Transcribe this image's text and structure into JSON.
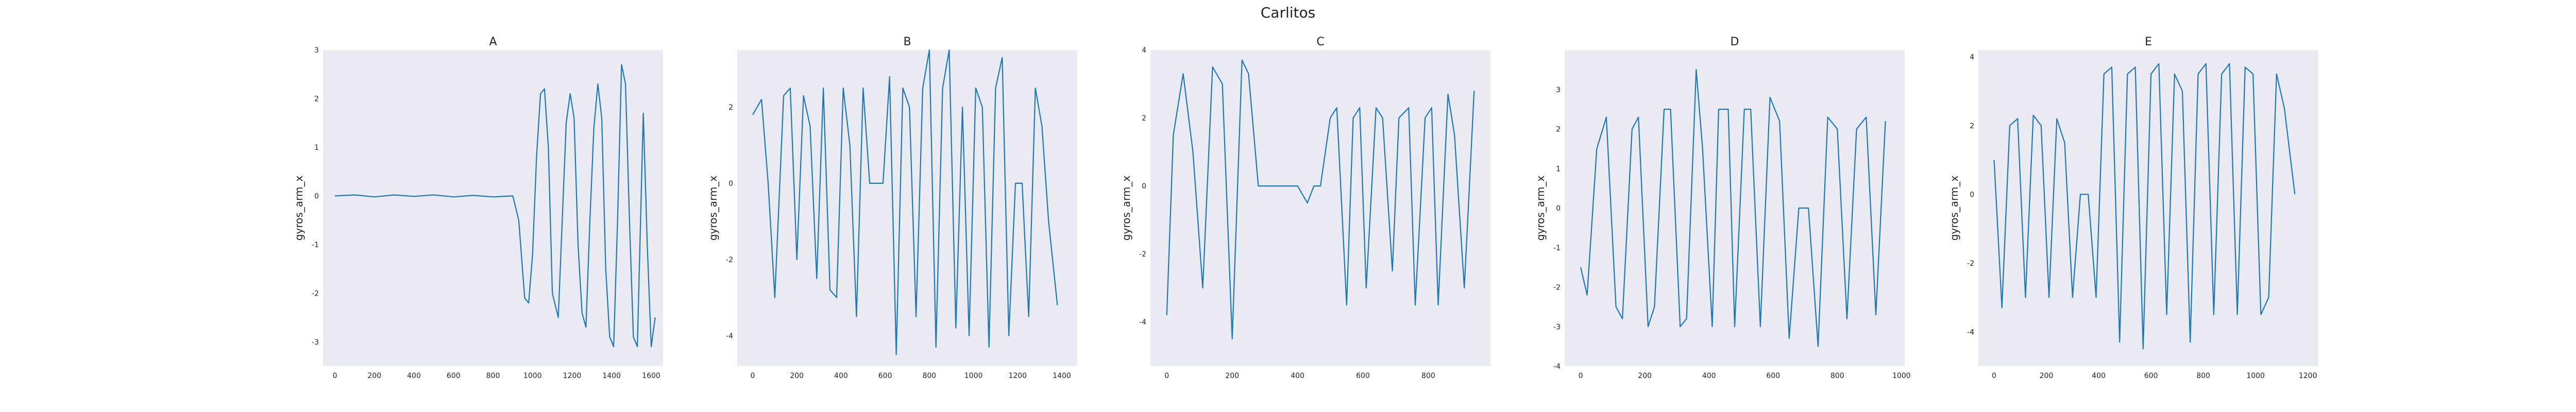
{
  "figure": {
    "title": "Carlitos"
  },
  "colors": {
    "line": "#1f77b4",
    "panel_bg": "#eaeaf2",
    "text": "#222222"
  },
  "chart_data": [
    {
      "type": "line",
      "title": "A",
      "xlabel": "",
      "ylabel": "gyros_arm_x",
      "xlim": [
        -60,
        1660
      ],
      "ylim": [
        -3.5,
        3.0
      ],
      "xticks": [
        0,
        200,
        400,
        600,
        800,
        1000,
        1200,
        1400,
        1600
      ],
      "yticks": [
        -3,
        -2,
        -1,
        0,
        1,
        2,
        3
      ],
      "grid": false,
      "x": [
        0,
        100,
        200,
        300,
        400,
        500,
        600,
        700,
        800,
        900,
        930,
        960,
        980,
        1000,
        1020,
        1040,
        1060,
        1080,
        1100,
        1130,
        1150,
        1170,
        1190,
        1210,
        1230,
        1250,
        1270,
        1290,
        1310,
        1330,
        1350,
        1370,
        1390,
        1410,
        1430,
        1450,
        1470,
        1490,
        1510,
        1530,
        1560,
        1580,
        1600,
        1620
      ],
      "y": [
        0.0,
        0.02,
        -0.02,
        0.02,
        -0.01,
        0.02,
        -0.02,
        0.01,
        -0.02,
        0.0,
        -0.5,
        -2.1,
        -2.2,
        -1.2,
        0.8,
        2.1,
        2.2,
        1.0,
        -2.0,
        -2.5,
        -0.5,
        1.5,
        2.1,
        1.6,
        -1.0,
        -2.4,
        -2.7,
        -0.5,
        1.4,
        2.3,
        1.6,
        -1.5,
        -2.9,
        -3.1,
        -0.5,
        2.7,
        2.3,
        -0.5,
        -2.9,
        -3.1,
        1.7,
        -1.0,
        -3.1,
        -2.5
      ]
    },
    {
      "type": "line",
      "title": "B",
      "xlabel": "",
      "ylabel": "gyros_arm_x",
      "xlim": [
        -70,
        1470
      ],
      "ylim": [
        -4.8,
        3.5
      ],
      "xticks": [
        0,
        200,
        400,
        600,
        800,
        1000,
        1200,
        1400
      ],
      "yticks": [
        -4,
        -2,
        0,
        2
      ],
      "grid": false,
      "x": [
        0,
        40,
        70,
        100,
        140,
        170,
        200,
        230,
        260,
        290,
        320,
        350,
        380,
        410,
        440,
        470,
        500,
        530,
        560,
        590,
        620,
        650,
        680,
        710,
        740,
        770,
        800,
        830,
        860,
        890,
        920,
        950,
        980,
        1010,
        1040,
        1070,
        1100,
        1130,
        1160,
        1190,
        1220,
        1250,
        1280,
        1310,
        1340,
        1380
      ],
      "y": [
        1.8,
        2.2,
        0.0,
        -3.0,
        2.3,
        2.5,
        -2.0,
        2.3,
        1.5,
        -2.5,
        2.5,
        -2.8,
        -3.0,
        2.5,
        1.0,
        -3.5,
        2.5,
        0.0,
        0.0,
        0.0,
        2.8,
        -4.5,
        2.5,
        2.0,
        -3.5,
        2.5,
        3.5,
        -4.3,
        2.5,
        3.5,
        -3.8,
        2.0,
        -4.0,
        2.5,
        2.0,
        -4.3,
        2.5,
        3.3,
        -4.0,
        0.0,
        0.0,
        -3.5,
        2.5,
        1.5,
        -1.0,
        -3.2
      ]
    },
    {
      "type": "line",
      "title": "C",
      "xlabel": "",
      "ylabel": "gyros_arm_x",
      "xlim": [
        -50,
        990
      ],
      "ylim": [
        -5.3,
        4.0
      ],
      "xticks": [
        0,
        200,
        400,
        600,
        800
      ],
      "yticks": [
        -4,
        -2,
        0,
        2,
        4
      ],
      "grid": false,
      "x": [
        0,
        20,
        50,
        80,
        110,
        140,
        170,
        200,
        230,
        250,
        280,
        300,
        350,
        400,
        430,
        450,
        470,
        500,
        520,
        550,
        570,
        590,
        610,
        640,
        660,
        690,
        710,
        740,
        760,
        790,
        810,
        830,
        860,
        880,
        910,
        940
      ],
      "y": [
        -3.8,
        1.5,
        3.3,
        1.0,
        -3.0,
        3.5,
        3.0,
        -4.5,
        3.7,
        3.3,
        0.0,
        0.0,
        0.0,
        0.0,
        -0.5,
        0.0,
        0.0,
        2.0,
        2.3,
        -3.5,
        2.0,
        2.3,
        -3.0,
        2.3,
        2.0,
        -2.5,
        2.0,
        2.3,
        -3.5,
        2.0,
        2.3,
        -3.5,
        2.7,
        1.5,
        -3.0,
        2.8
      ]
    },
    {
      "type": "line",
      "title": "D",
      "xlabel": "",
      "ylabel": "gyros_arm_x",
      "xlim": [
        -50,
        1010
      ],
      "ylim": [
        -4.0,
        4.0
      ],
      "xticks": [
        0,
        200,
        400,
        600,
        800,
        1000
      ],
      "yticks": [
        -4,
        -3,
        -2,
        -1,
        0,
        1,
        2,
        3
      ],
      "grid": false,
      "x": [
        0,
        20,
        50,
        80,
        110,
        130,
        160,
        180,
        210,
        230,
        260,
        280,
        310,
        330,
        360,
        380,
        410,
        430,
        460,
        480,
        510,
        530,
        560,
        590,
        620,
        650,
        680,
        710,
        740,
        770,
        800,
        830,
        860,
        890,
        920,
        950
      ],
      "y": [
        -1.5,
        -2.2,
        1.5,
        2.3,
        -2.5,
        -2.8,
        2.0,
        2.3,
        -3.0,
        -2.5,
        2.5,
        2.5,
        -3.0,
        -2.8,
        3.5,
        1.5,
        -3.0,
        2.5,
        2.5,
        -3.0,
        2.5,
        2.5,
        -3.0,
        2.8,
        2.2,
        -3.3,
        0.0,
        0.0,
        -3.5,
        2.3,
        2.0,
        -2.8,
        2.0,
        2.3,
        -2.7,
        2.2
      ]
    },
    {
      "type": "line",
      "title": "E",
      "xlabel": "",
      "ylabel": "gyros_arm_x",
      "xlim": [
        -60,
        1240
      ],
      "ylim": [
        -5.0,
        4.2
      ],
      "xticks": [
        0,
        200,
        400,
        600,
        800,
        1000,
        1200
      ],
      "yticks": [
        -4,
        -2,
        0,
        2,
        4
      ],
      "grid": false,
      "x": [
        0,
        30,
        60,
        90,
        120,
        150,
        180,
        210,
        240,
        270,
        300,
        330,
        360,
        390,
        420,
        450,
        480,
        510,
        540,
        570,
        600,
        630,
        660,
        690,
        720,
        750,
        780,
        810,
        840,
        870,
        900,
        930,
        960,
        990,
        1020,
        1050,
        1080,
        1110,
        1150
      ],
      "y": [
        1.0,
        -3.3,
        2.0,
        2.2,
        -3.0,
        2.3,
        2.0,
        -3.0,
        2.2,
        1.5,
        -3.0,
        0.0,
        0.0,
        -3.0,
        3.5,
        3.7,
        -4.3,
        3.5,
        3.7,
        -4.5,
        3.5,
        3.8,
        -3.5,
        3.5,
        3.0,
        -4.3,
        3.5,
        3.8,
        -3.5,
        3.5,
        3.8,
        -3.5,
        3.7,
        3.5,
        -3.5,
        -3.0,
        3.5,
        2.5,
        0.0
      ]
    }
  ]
}
